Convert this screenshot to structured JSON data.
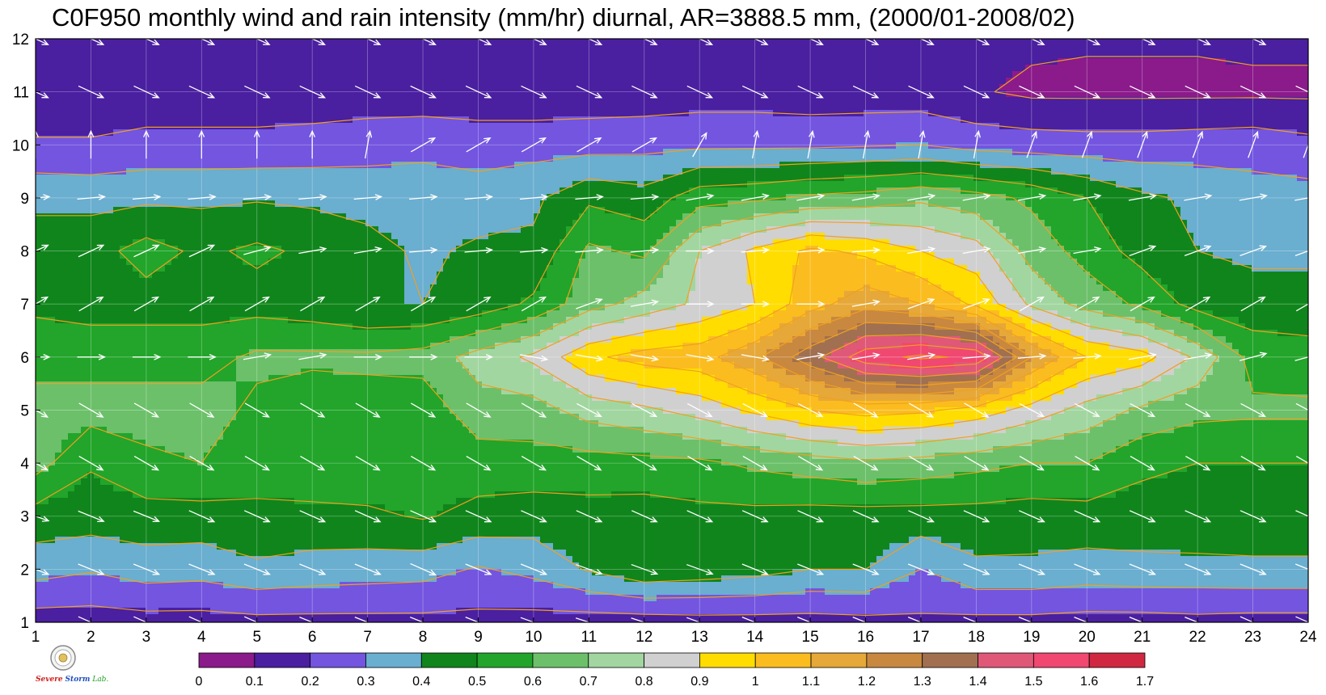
{
  "chart_data": {
    "type": "heatmap",
    "title": "C0F950 monthly wind and rain intensity (mm/hr) diurnal, AR=3888.5 mm, (2000/01-2008/02)",
    "xlabel": "",
    "ylabel": "",
    "xlim": [
      1,
      24
    ],
    "ylim": [
      1,
      12
    ],
    "x_ticks": [
      "1",
      "2",
      "3",
      "4",
      "5",
      "6",
      "7",
      "8",
      "9",
      "10",
      "11",
      "12",
      "13",
      "14",
      "15",
      "16",
      "17",
      "18",
      "19",
      "20",
      "21",
      "22",
      "23",
      "24"
    ],
    "y_ticks": [
      "1",
      "2",
      "3",
      "4",
      "5",
      "6",
      "7",
      "8",
      "9",
      "10",
      "11",
      "12"
    ],
    "grid": true,
    "levels": [
      0,
      0.1,
      0.2,
      0.3,
      0.4,
      0.5,
      0.6,
      0.7,
      0.8,
      0.9,
      1,
      1.1,
      1.2,
      1.3,
      1.4,
      1.5,
      1.6,
      1.7
    ],
    "level_labels": [
      "0",
      "0.1",
      "0.2",
      "0.3",
      "0.4",
      "0.5",
      "0.6",
      "0.7",
      "0.8",
      "0.9",
      "1",
      "1.1",
      "1.2",
      "1.3",
      "1.4",
      "1.5",
      "1.6",
      "1.7"
    ],
    "colors": [
      "#8b1a8b",
      "#4a1fa0",
      "#7355e0",
      "#6aaed0",
      "#10851c",
      "#22a52a",
      "#6cc06a",
      "#a2d6a0",
      "#d0d0d0",
      "#ffdd00",
      "#fbbc20",
      "#e6a838",
      "#c88840",
      "#a07050",
      "#e05878",
      "#f04870",
      "#d02840"
    ],
    "contour_color": "#f0a020",
    "arrow_color": "#ffffff",
    "hours": [
      1,
      2,
      3,
      4,
      5,
      6,
      7,
      8,
      9,
      10,
      11,
      12,
      13,
      14,
      15,
      16,
      17,
      18,
      19,
      20,
      21,
      22,
      23,
      24
    ],
    "months": [
      1,
      2,
      3,
      4,
      5,
      6,
      7,
      8,
      9,
      10,
      11,
      12
    ],
    "rain_intensity": [
      [
        0.15,
        0.15,
        0.16,
        0.16,
        0.17,
        0.17,
        0.17,
        0.17,
        0.17,
        0.16,
        0.15,
        0.15,
        0.16,
        0.16,
        0.16,
        0.17,
        0.18,
        0.17,
        0.17,
        0.16,
        0.16,
        0.17,
        0.16,
        0.16
      ],
      [
        0.34,
        0.31,
        0.35,
        0.34,
        0.38,
        0.36,
        0.35,
        0.34,
        0.29,
        0.33,
        0.41,
        0.48,
        0.46,
        0.44,
        0.4,
        0.4,
        0.3,
        0.38,
        0.38,
        0.36,
        0.37,
        0.37,
        0.38,
        0.38
      ],
      [
        0.46,
        0.45,
        0.46,
        0.46,
        0.48,
        0.47,
        0.48,
        0.51,
        0.47,
        0.45,
        0.46,
        0.45,
        0.47,
        0.47,
        0.46,
        0.46,
        0.46,
        0.46,
        0.45,
        0.46,
        0.46,
        0.47,
        0.46,
        0.46
      ],
      [
        0.64,
        0.51,
        0.58,
        0.6,
        0.54,
        0.58,
        0.58,
        0.51,
        0.55,
        0.56,
        0.56,
        0.57,
        0.58,
        0.62,
        0.65,
        0.68,
        0.66,
        0.63,
        0.6,
        0.6,
        0.52,
        0.5,
        0.5,
        0.5
      ],
      [
        0.64,
        0.64,
        0.64,
        0.64,
        0.58,
        0.54,
        0.56,
        0.54,
        0.66,
        0.66,
        0.74,
        0.78,
        0.84,
        0.92,
        1.0,
        1.04,
        1.02,
        0.96,
        0.86,
        0.76,
        0.68,
        0.63,
        0.62,
        0.62
      ],
      [
        0.56,
        0.56,
        0.56,
        0.56,
        0.62,
        0.62,
        0.62,
        0.64,
        0.74,
        0.82,
        0.98,
        1.04,
        1.06,
        1.18,
        1.36,
        1.56,
        1.62,
        1.58,
        1.2,
        1.0,
        0.94,
        0.78,
        0.56,
        0.54
      ],
      [
        0.48,
        0.46,
        0.46,
        0.46,
        0.46,
        0.44,
        0.4,
        0.4,
        0.44,
        0.52,
        0.66,
        0.74,
        0.82,
        0.9,
        1.06,
        1.16,
        1.1,
        0.98,
        0.78,
        0.66,
        0.58,
        0.46,
        0.44,
        0.44
      ],
      [
        0.44,
        0.46,
        0.54,
        0.48,
        0.52,
        0.48,
        0.44,
        0.38,
        0.42,
        0.42,
        0.62,
        0.58,
        0.8,
        0.92,
        1.02,
        0.98,
        0.9,
        0.84,
        0.66,
        0.56,
        0.46,
        0.4,
        0.38,
        0.38
      ],
      [
        0.38,
        0.37,
        0.38,
        0.38,
        0.39,
        0.38,
        0.36,
        0.36,
        0.34,
        0.38,
        0.48,
        0.44,
        0.56,
        0.58,
        0.62,
        0.64,
        0.68,
        0.64,
        0.58,
        0.5,
        0.42,
        0.38,
        0.34,
        0.34
      ],
      [
        0.21,
        0.21,
        0.23,
        0.23,
        0.23,
        0.24,
        0.26,
        0.27,
        0.26,
        0.26,
        0.26,
        0.27,
        0.28,
        0.28,
        0.28,
        0.29,
        0.3,
        0.26,
        0.25,
        0.24,
        0.24,
        0.25,
        0.26,
        0.23
      ],
      [
        0.14,
        0.14,
        0.14,
        0.14,
        0.14,
        0.14,
        0.14,
        0.14,
        0.13,
        0.13,
        0.14,
        0.14,
        0.15,
        0.15,
        0.14,
        0.14,
        0.14,
        0.11,
        0.08,
        0.08,
        0.08,
        0.08,
        0.08,
        0.08
      ],
      [
        0.12,
        0.12,
        0.12,
        0.12,
        0.12,
        0.11,
        0.11,
        0.12,
        0.12,
        0.12,
        0.12,
        0.12,
        0.12,
        0.12,
        0.12,
        0.12,
        0.12,
        0.12,
        0.12,
        0.11,
        0.11,
        0.11,
        0.12,
        0.12
      ]
    ],
    "wind_direction_to_deg": [
      [
        24,
        24,
        24,
        24,
        24,
        22,
        22,
        22,
        22,
        20,
        18,
        18,
        20,
        22,
        22,
        22,
        22,
        22,
        22,
        22,
        22,
        22,
        24,
        24
      ],
      [
        22,
        22,
        22,
        22,
        22,
        22,
        22,
        24,
        22,
        22,
        20,
        20,
        20,
        22,
        22,
        22,
        22,
        22,
        22,
        22,
        22,
        22,
        22,
        22
      ],
      [
        20,
        22,
        22,
        24,
        24,
        24,
        24,
        24,
        24,
        24,
        24,
        24,
        24,
        24,
        24,
        24,
        24,
        24,
        24,
        24,
        24,
        24,
        24,
        24
      ],
      [
        30,
        30,
        30,
        30,
        30,
        30,
        30,
        30,
        30,
        30,
        30,
        30,
        30,
        30,
        30,
        30,
        30,
        30,
        30,
        30,
        30,
        30,
        30,
        30
      ],
      [
        30,
        30,
        30,
        30,
        30,
        30,
        30,
        30,
        30,
        30,
        28,
        28,
        28,
        28,
        28,
        30,
        30,
        30,
        28,
        28,
        28,
        28,
        28,
        28
      ],
      [
        0,
        0,
        0,
        0,
        -10,
        -10,
        0,
        0,
        0,
        10,
        10,
        10,
        10,
        10,
        -10,
        -10,
        -10,
        -5,
        -5,
        -5,
        -10,
        -10,
        -15,
        -15
      ],
      [
        -30,
        -30,
        -30,
        -30,
        -30,
        -30,
        -30,
        -30,
        -30,
        -30,
        -20,
        -10,
        0,
        0,
        0,
        -10,
        -20,
        -20,
        -30,
        -30,
        -30,
        -30,
        -30,
        -30
      ],
      [
        -25,
        -25,
        -25,
        -25,
        -15,
        -10,
        -10,
        -5,
        -5,
        -5,
        -5,
        -5,
        0,
        -5,
        -5,
        -5,
        -10,
        -10,
        -10,
        -10,
        -20,
        -20,
        -20,
        -20
      ],
      [
        -5,
        -5,
        -5,
        -5,
        -5,
        -5,
        -5,
        -5,
        -5,
        -5,
        -5,
        -5,
        -10,
        -10,
        -10,
        -10,
        -10,
        -10,
        -10,
        -10,
        -10,
        -10,
        -10,
        -10
      ],
      [
        -90,
        -90,
        -90,
        -90,
        -90,
        -90,
        -80,
        -30,
        -30,
        -30,
        -30,
        -30,
        -60,
        -80,
        -80,
        -80,
        -80,
        -80,
        -70,
        -70,
        -70,
        -70,
        -70,
        -70
      ],
      [
        25,
        25,
        25,
        25,
        25,
        25,
        25,
        25,
        25,
        25,
        25,
        25,
        25,
        25,
        25,
        25,
        25,
        25,
        25,
        25,
        25,
        25,
        25,
        25
      ],
      [
        25,
        25,
        25,
        25,
        25,
        25,
        25,
        25,
        25,
        25,
        25,
        25,
        25,
        25,
        25,
        25,
        25,
        25,
        25,
        25,
        25,
        25,
        25,
        25
      ]
    ]
  },
  "logo": {
    "text_part1": "Severe",
    "text_part2": "Storm",
    "text_part3": "Lab."
  }
}
